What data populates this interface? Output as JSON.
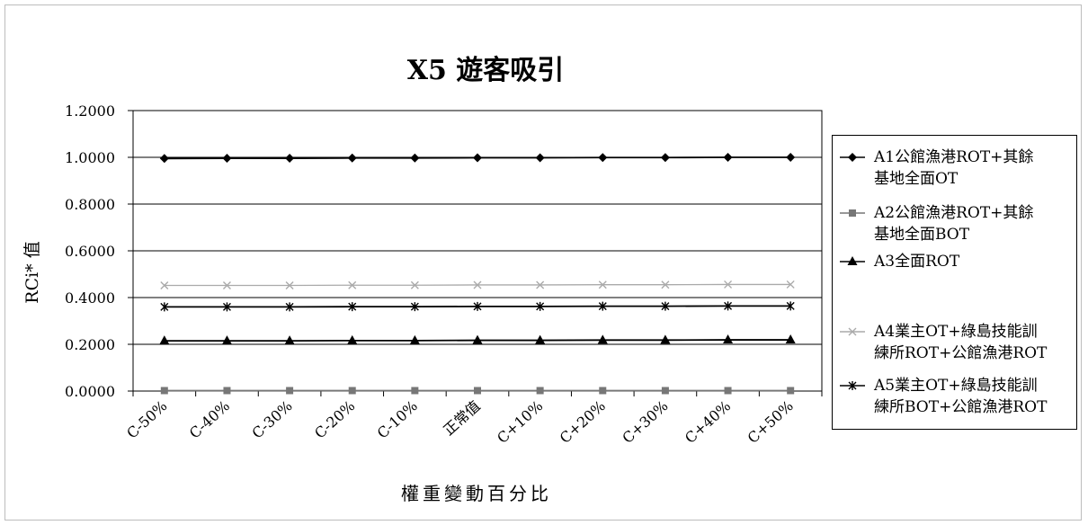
{
  "chart_data": {
    "type": "line",
    "title": "X5  遊客吸引",
    "xlabel": "權重變動百分比",
    "ylabel": "RCi* 值",
    "ylim": [
      0,
      1.2
    ],
    "yticks": [
      "0.0000",
      "0.2000",
      "0.4000",
      "0.6000",
      "0.8000",
      "1.0000",
      "1.2000"
    ],
    "categories": [
      "C-50%",
      "C-40%",
      "C-30%",
      "C-20%",
      "C-10%",
      "正常值",
      "C+10%",
      "C+20%",
      "C+30%",
      "C+40%",
      "C+50%"
    ],
    "grid": true,
    "legend_position": "right",
    "series": [
      {
        "name": "A1公館漁港ROT+其餘基地全面OT",
        "color": "#000000",
        "marker": "diamond",
        "values": [
          0.995,
          0.996,
          0.996,
          0.997,
          0.997,
          0.998,
          0.998,
          0.999,
          0.999,
          1.0,
          1.0
        ]
      },
      {
        "name": "A2公館漁港ROT+其餘基地全面BOT",
        "color": "#777777",
        "marker": "square",
        "values": [
          0.002,
          0.002,
          0.002,
          0.002,
          0.002,
          0.002,
          0.002,
          0.002,
          0.002,
          0.002,
          0.002
        ]
      },
      {
        "name": "A3全面ROT",
        "color": "#000000",
        "marker": "triangle",
        "values": [
          0.215,
          0.215,
          0.215,
          0.216,
          0.216,
          0.217,
          0.217,
          0.218,
          0.218,
          0.219,
          0.219
        ]
      },
      {
        "name": "A4業主OT+綠島技能訓練所ROT+公館漁港ROT",
        "color": "#aaaaaa",
        "marker": "x",
        "values": [
          0.452,
          0.452,
          0.452,
          0.453,
          0.453,
          0.454,
          0.454,
          0.455,
          0.455,
          0.456,
          0.456
        ]
      },
      {
        "name": "A5業主OT+綠島技能訓練所BOT+公館漁港ROT",
        "color": "#000000",
        "marker": "star",
        "values": [
          0.36,
          0.36,
          0.36,
          0.361,
          0.361,
          0.362,
          0.362,
          0.363,
          0.363,
          0.364,
          0.364
        ]
      }
    ]
  },
  "legend": [
    {
      "line1": "A1公館漁港ROT+其餘",
      "line2": "基地全面OT"
    },
    {
      "line1": "A2公館漁港ROT+其餘",
      "line2": "基地全面BOT"
    },
    {
      "line1": "A3全面ROT",
      "line2": ""
    },
    {
      "line1": "A4業主OT+綠島技能訓",
      "line2": "練所ROT+公館漁港ROT"
    },
    {
      "line1": "A5業主OT+綠島技能訓",
      "line2": "練所BOT+公館漁港ROT"
    }
  ]
}
